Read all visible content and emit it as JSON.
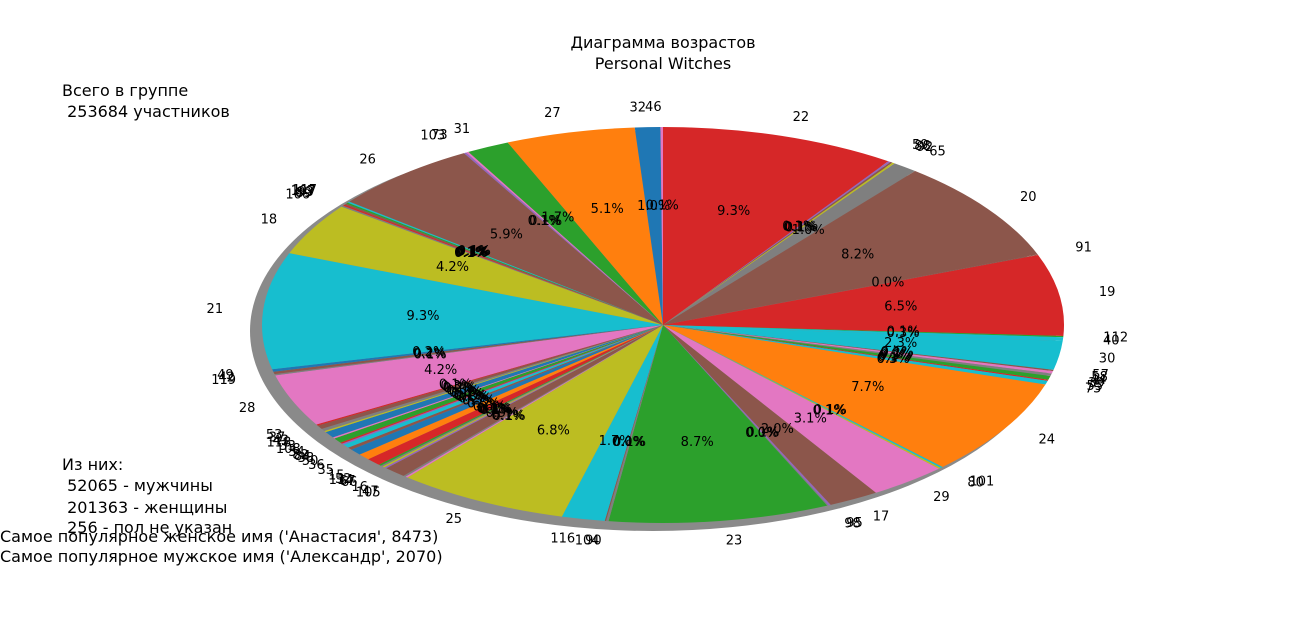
{
  "chart_data": {
    "type": "pie",
    "title": "Диаграмма возрастов",
    "subtitle": "Personal Witches",
    "slices": [
      {
        "label": "22",
        "pct": 9.3,
        "color": "#d62728"
      },
      {
        "label": "59",
        "pct": 0.1,
        "color": "#9467bd"
      },
      {
        "label": "88",
        "pct": 0.1,
        "color": "#8c564b"
      },
      {
        "label": "92",
        "pct": 0.1,
        "color": "#bcbd22"
      },
      {
        "label": "65",
        "pct": 1.0,
        "color": "#7f7f7f"
      },
      {
        "label": "20",
        "pct": 8.2,
        "color": "#8c564b"
      },
      {
        "label": "91",
        "pct": 0.0,
        "color": "#8c564b"
      },
      {
        "label": "19",
        "pct": 6.5,
        "color": "#d62728"
      },
      {
        "label": "112",
        "pct": 0.1,
        "color": "#2ca02c"
      },
      {
        "label": "40",
        "pct": 0.3,
        "color": "#17becf"
      },
      {
        "label": "30",
        "pct": 2.3,
        "color": "#17becf"
      },
      {
        "label": "57",
        "pct": 0.1,
        "color": "#8c564b"
      },
      {
        "label": "58",
        "pct": 0.2,
        "color": "#e377c2"
      },
      {
        "label": "44",
        "pct": 0.2,
        "color": "#7f7f7f"
      },
      {
        "label": "39",
        "pct": 0.3,
        "color": "#2ca02c"
      },
      {
        "label": "55",
        "pct": 0.1,
        "color": "#d62728"
      },
      {
        "label": "75",
        "pct": 0.3,
        "color": "#17becf"
      },
      {
        "label": "24",
        "pct": 7.7,
        "color": "#ff7f0e"
      },
      {
        "label": "101",
        "pct": 0.1,
        "color": "#17becf"
      },
      {
        "label": "80",
        "pct": 0.1,
        "color": "#bcbd22"
      },
      {
        "label": "29",
        "pct": 3.1,
        "color": "#e377c2"
      },
      {
        "label": "17",
        "pct": 2.0,
        "color": "#8c564b"
      },
      {
        "label": "95",
        "pct": 0.1,
        "color": "#9467bd"
      },
      {
        "label": "98",
        "pct": 0.0,
        "color": "#7f7f7f"
      },
      {
        "label": "23",
        "pct": 8.7,
        "color": "#2ca02c"
      },
      {
        "label": "90",
        "pct": 0.1,
        "color": "#7f7f7f"
      },
      {
        "label": "104",
        "pct": 0.0,
        "color": "#8c564b"
      },
      {
        "label": "116",
        "pct": 1.7,
        "color": "#17becf"
      },
      {
        "label": "25",
        "pct": 6.8,
        "color": "#bcbd22"
      },
      {
        "label": "105",
        "pct": 0.1,
        "color": "#e377c2"
      },
      {
        "label": "47",
        "pct": 0.1,
        "color": "#7f7f7f"
      },
      {
        "label": "16",
        "pct": 0.9,
        "color": "#8c564b"
      },
      {
        "label": "66",
        "pct": 0.1,
        "color": "#9467bd"
      },
      {
        "label": "67",
        "pct": 0.1,
        "color": "#bcbd22"
      },
      {
        "label": "114",
        "pct": 0.1,
        "color": "#7f7f7f"
      },
      {
        "label": "52",
        "pct": 0.1,
        "color": "#2ca02c"
      },
      {
        "label": "15",
        "pct": 0.6,
        "color": "#d62728"
      },
      {
        "label": "35",
        "pct": 0.5,
        "color": "#ff7f0e"
      },
      {
        "label": "36",
        "pct": 0.5,
        "color": "#1f77b4"
      },
      {
        "label": "50",
        "pct": 0.2,
        "color": "#8c564b"
      },
      {
        "label": "38",
        "pct": 0.3,
        "color": "#17becf"
      },
      {
        "label": "84",
        "pct": 0.1,
        "color": "#9467bd"
      },
      {
        "label": "82",
        "pct": 0.1,
        "color": "#d62728"
      },
      {
        "label": "34",
        "pct": 0.4,
        "color": "#2ca02c"
      },
      {
        "label": "108",
        "pct": 0.1,
        "color": "#e377c2"
      },
      {
        "label": "33",
        "pct": 0.5,
        "color": "#1f77b4"
      },
      {
        "label": "118",
        "pct": 0.1,
        "color": "#bcbd22"
      },
      {
        "label": "43",
        "pct": 0.2,
        "color": "#7f7f7f"
      },
      {
        "label": "37",
        "pct": 0.3,
        "color": "#8c564b"
      },
      {
        "label": "53",
        "pct": 0.1,
        "color": "#d62728"
      },
      {
        "label": "28",
        "pct": 4.2,
        "color": "#e377c2"
      },
      {
        "label": "119",
        "pct": 0.1,
        "color": "#7f7f7f"
      },
      {
        "label": "42",
        "pct": 0.2,
        "color": "#8c564b"
      },
      {
        "label": "49",
        "pct": 0.2,
        "color": "#1f77b4"
      },
      {
        "label": "21",
        "pct": 9.3,
        "color": "#17becf"
      },
      {
        "label": "18",
        "pct": 4.2,
        "color": "#bcbd22"
      },
      {
        "label": "106",
        "pct": 0.1,
        "color": "#7f7f7f"
      },
      {
        "label": "89",
        "pct": 0.1,
        "color": "#d62728"
      },
      {
        "label": "93",
        "pct": 0.1,
        "color": "#8c564b"
      },
      {
        "label": "107",
        "pct": 0.1,
        "color": "#2ca02c"
      },
      {
        "label": "117",
        "pct": 0.1,
        "color": "#17becf"
      },
      {
        "label": "26",
        "pct": 5.9,
        "color": "#8c564b"
      },
      {
        "label": "103",
        "pct": 0.1,
        "color": "#9467bd"
      },
      {
        "label": "73",
        "pct": 0.1,
        "color": "#e377c2"
      },
      {
        "label": "31",
        "pct": 1.7,
        "color": "#2ca02c"
      },
      {
        "label": "27",
        "pct": 5.1,
        "color": "#ff7f0e"
      },
      {
        "label": "32",
        "pct": 1.0,
        "color": "#1f77b4"
      },
      {
        "label": "46",
        "pct": 0.1,
        "color": "#e377c2"
      }
    ]
  },
  "info_top": {
    "line1": "Всего в группе",
    "line2": " 253684 участников"
  },
  "info_bottom": {
    "line1": "Из них:",
    "line2": " 52065 - мужчины",
    "line3": " 201363 - женщины",
    "line4": " 256 - пол не указан",
    "line5": "Самое популярное женское имя ('Анастасия', 8473)",
    "line6": "Самое популярное мужское имя ('Александр', 2070)"
  }
}
